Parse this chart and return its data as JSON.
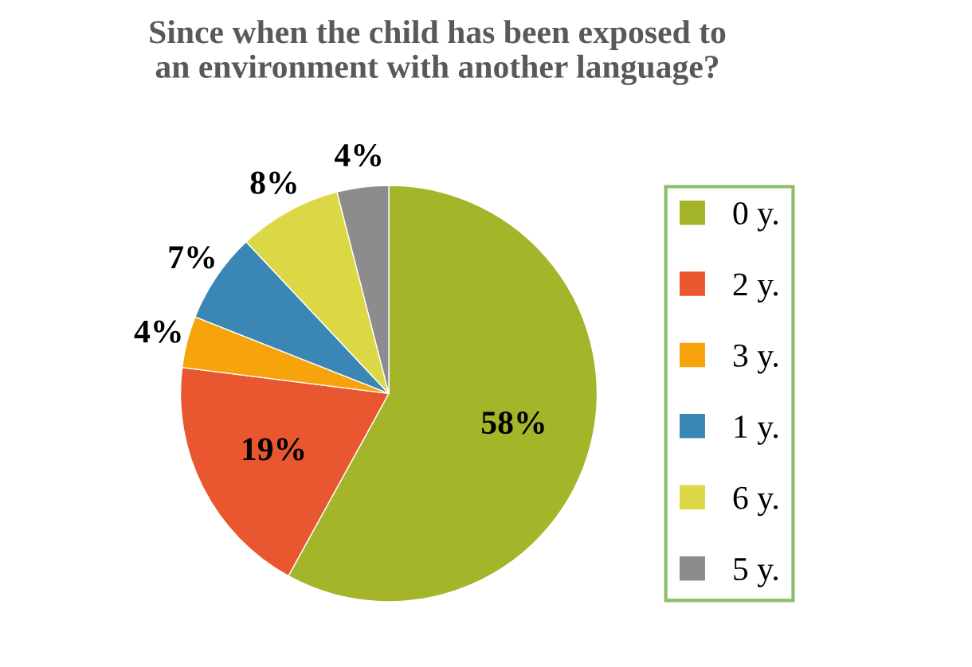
{
  "chart_data": {
    "type": "pie",
    "title": "Since when the child has been exposed to\nan environment with another language?",
    "categories": [
      "0 y.",
      "2 y.",
      "3 y.",
      "1 y.",
      "6 y.",
      "5 y."
    ],
    "values": [
      58,
      19,
      4,
      7,
      8,
      4
    ],
    "colors": [
      "#a5b52a",
      "#e8572f",
      "#f7a30b",
      "#3a86b4",
      "#dcd845",
      "#8c8c8c"
    ],
    "value_labels": [
      "58%",
      "19%",
      "4%",
      "7%",
      "8%",
      "4%"
    ],
    "legend": "right"
  }
}
